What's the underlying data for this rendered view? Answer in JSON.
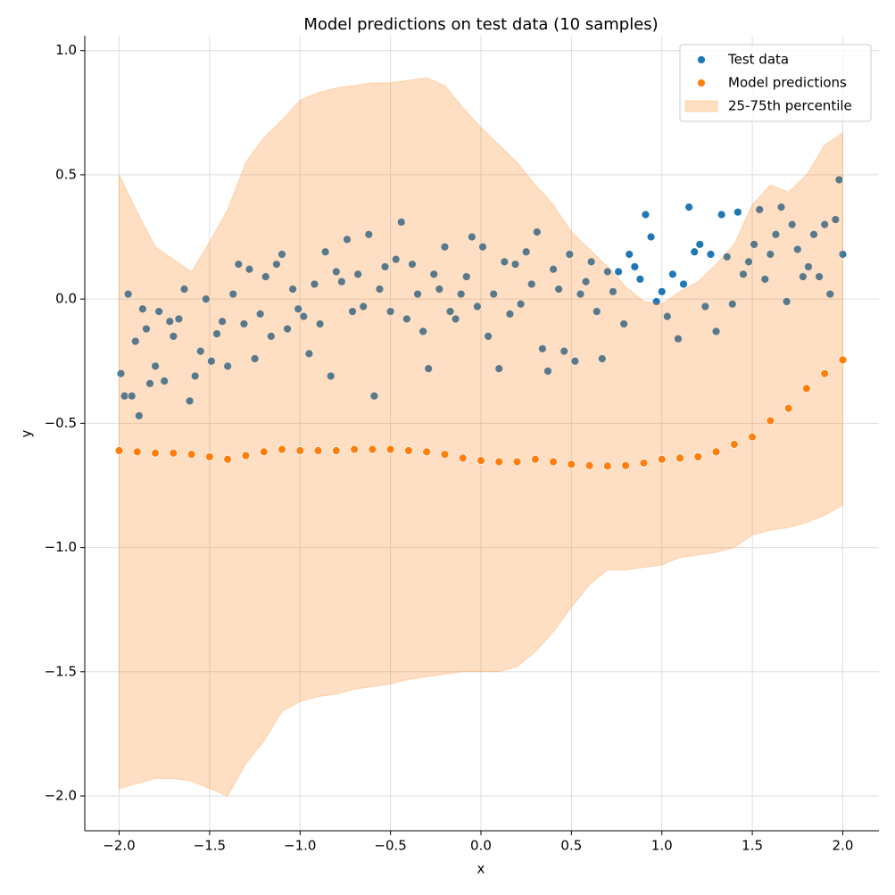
{
  "chart_data": {
    "type": "scatter",
    "title": "Model predictions on test data (10 samples)",
    "x_label": "x",
    "y_label": "y",
    "xlim": [
      -2.19,
      2.2
    ],
    "ylim": [
      -2.14,
      1.06
    ],
    "xticks": [
      {
        "value": -2.0,
        "label": "−2.0"
      },
      {
        "value": -1.5,
        "label": "−1.5"
      },
      {
        "value": -1.0,
        "label": "−1.0"
      },
      {
        "value": -0.5,
        "label": "−0.5"
      },
      {
        "value": 0.0,
        "label": "0.0"
      },
      0.5,
      {
        "value": 1.0,
        "label": "1.0"
      },
      1.5,
      {
        "value": 2.0,
        "label": "2.0"
      }
    ],
    "yticks": [
      {
        "value": -2.0,
        "label": "−2.0"
      },
      {
        "value": -1.5,
        "label": "−1.5"
      },
      {
        "value": -1.0,
        "label": "−1.0"
      },
      {
        "value": -0.5,
        "label": "−0.5"
      },
      {
        "value": 0.0,
        "label": "0.0"
      },
      0.5,
      {
        "value": 1.0,
        "label": "1.0"
      }
    ],
    "grid": true,
    "legend": "upper right",
    "series": [
      {
        "name": "Test data",
        "color": "#1f77b4",
        "x": [
          -1.99,
          -1.97,
          -1.95,
          -1.93,
          -1.91,
          -1.89,
          -1.87,
          -1.85,
          -1.83,
          -1.8,
          -1.78,
          -1.75,
          -1.72,
          -1.7,
          -1.67,
          -1.64,
          -1.61,
          -1.58,
          -1.55,
          -1.52,
          -1.49,
          -1.46,
          -1.43,
          -1.4,
          -1.37,
          -1.34,
          -1.31,
          -1.28,
          -1.25,
          -1.22,
          -1.19,
          -1.16,
          -1.13,
          -1.1,
          -1.07,
          -1.04,
          -1.01,
          -0.98,
          -0.95,
          -0.92,
          -0.89,
          -0.86,
          -0.83,
          -0.8,
          -0.77,
          -0.74,
          -0.71,
          -0.68,
          -0.65,
          -0.62,
          -0.59,
          -0.56,
          -0.53,
          -0.5,
          -0.47,
          -0.44,
          -0.41,
          -0.38,
          -0.35,
          -0.32,
          -0.29,
          -0.26,
          -0.23,
          -0.2,
          -0.17,
          -0.14,
          -0.11,
          -0.08,
          -0.05,
          -0.02,
          0.01,
          0.04,
          0.07,
          0.1,
          0.13,
          0.16,
          0.19,
          0.22,
          0.25,
          0.28,
          0.31,
          0.34,
          0.37,
          0.4,
          0.43,
          0.46,
          0.49,
          0.52,
          0.55,
          0.58,
          0.61,
          0.64,
          0.67,
          0.7,
          0.73,
          0.76,
          0.79,
          0.82,
          0.85,
          0.88,
          0.91,
          0.94,
          0.97,
          1.0,
          1.03,
          1.06,
          1.09,
          1.12,
          1.15,
          1.18,
          1.21,
          1.24,
          1.27,
          1.3,
          1.33,
          1.36,
          1.39,
          1.42,
          1.45,
          1.48,
          1.51,
          1.54,
          1.57,
          1.6,
          1.63,
          1.66,
          1.69,
          1.72,
          1.75,
          1.78,
          1.81,
          1.84,
          1.87,
          1.9,
          1.93,
          1.96,
          1.98,
          2.0
        ],
        "values": [
          -0.3,
          -0.39,
          0.02,
          -0.39,
          -0.17,
          -0.47,
          -0.04,
          -0.12,
          -0.34,
          -0.27,
          -0.05,
          -0.33,
          -0.09,
          -0.15,
          -0.08,
          0.04,
          -0.41,
          -0.31,
          -0.21,
          0.0,
          -0.25,
          -0.14,
          -0.09,
          -0.27,
          0.02,
          0.14,
          -0.1,
          0.12,
          -0.24,
          -0.06,
          0.09,
          -0.15,
          0.14,
          0.18,
          -0.12,
          0.04,
          -0.04,
          -0.07,
          -0.22,
          0.06,
          -0.1,
          0.19,
          -0.31,
          0.11,
          0.07,
          0.24,
          -0.05,
          0.1,
          -0.03,
          0.26,
          -0.39,
          0.04,
          0.13,
          -0.05,
          0.16,
          0.31,
          -0.08,
          0.14,
          0.02,
          -0.13,
          -0.28,
          0.1,
          0.04,
          0.21,
          -0.05,
          -0.08,
          0.02,
          0.09,
          0.25,
          -0.03,
          0.21,
          -0.15,
          0.02,
          -0.28,
          0.15,
          -0.06,
          0.14,
          -0.02,
          0.19,
          0.06,
          0.27,
          -0.2,
          -0.29,
          0.12,
          0.04,
          -0.21,
          0.18,
          -0.25,
          0.02,
          0.07,
          0.15,
          -0.05,
          -0.24,
          0.11,
          0.03,
          0.11,
          -0.1,
          0.18,
          0.13,
          0.08,
          0.34,
          0.25,
          -0.01,
          0.03,
          -0.07,
          0.1,
          -0.16,
          0.06,
          0.37,
          0.19,
          0.22,
          -0.03,
          0.18,
          -0.13,
          0.34,
          0.17,
          -0.02,
          0.35,
          0.1,
          0.15,
          0.22,
          0.36,
          0.08,
          0.18,
          0.26,
          0.37,
          -0.01,
          0.3,
          0.2,
          0.09,
          0.13,
          0.26,
          0.09,
          0.3,
          0.02,
          0.32,
          0.48,
          0.18
        ]
      },
      {
        "name": "Model predictions",
        "color": "#ff7f0e",
        "x": [
          -2.0,
          -1.9,
          -1.8,
          -1.7,
          -1.6,
          -1.5,
          -1.4,
          -1.3,
          -1.2,
          -1.1,
          -1.0,
          -0.9,
          -0.8,
          -0.7,
          -0.6,
          -0.5,
          -0.4,
          -0.3,
          -0.2,
          -0.1,
          0.0,
          0.1,
          0.2,
          0.3,
          0.4,
          0.5,
          0.6,
          0.7,
          0.8,
          0.9,
          1.0,
          1.1,
          1.2,
          1.3,
          1.4,
          1.5,
          1.6,
          1.7,
          1.8,
          1.9,
          2.0
        ],
        "values": [
          -0.61,
          -0.615,
          -0.62,
          -0.62,
          -0.625,
          -0.635,
          -0.645,
          -0.63,
          -0.615,
          -0.605,
          -0.61,
          -0.61,
          -0.61,
          -0.605,
          -0.605,
          -0.605,
          -0.61,
          -0.615,
          -0.625,
          -0.64,
          -0.65,
          -0.655,
          -0.655,
          -0.645,
          -0.655,
          -0.665,
          -0.67,
          -0.672,
          -0.67,
          -0.66,
          -0.645,
          -0.64,
          -0.635,
          -0.615,
          -0.585,
          -0.555,
          -0.49,
          -0.44,
          -0.36,
          -0.3,
          -0.245
        ]
      }
    ],
    "band": {
      "name": "25-75th percentile",
      "color": "#ff7f0e",
      "opacity": 0.25,
      "x": [
        -2.0,
        -1.9,
        -1.8,
        -1.7,
        -1.6,
        -1.5,
        -1.4,
        -1.3,
        -1.2,
        -1.1,
        -1.0,
        -0.9,
        -0.8,
        -0.7,
        -0.6,
        -0.5,
        -0.4,
        -0.3,
        -0.2,
        -0.1,
        0.0,
        0.1,
        0.2,
        0.3,
        0.4,
        0.5,
        0.6,
        0.7,
        0.8,
        0.9,
        1.0,
        1.1,
        1.2,
        1.3,
        1.4,
        1.5,
        1.6,
        1.7,
        1.8,
        1.9,
        2.0
      ],
      "upper": [
        0.5,
        0.35,
        0.21,
        0.16,
        0.11,
        0.23,
        0.36,
        0.55,
        0.65,
        0.72,
        0.8,
        0.83,
        0.85,
        0.86,
        0.87,
        0.87,
        0.88,
        0.89,
        0.86,
        0.77,
        0.69,
        0.62,
        0.55,
        0.46,
        0.38,
        0.27,
        0.2,
        0.13,
        0.05,
        -0.01,
        -0.02,
        0.03,
        0.07,
        0.14,
        0.22,
        0.38,
        0.46,
        0.43,
        0.5,
        0.62,
        0.67
      ],
      "lower": [
        -1.97,
        -1.95,
        -1.93,
        -1.93,
        -1.94,
        -1.97,
        -2.0,
        -1.87,
        -1.78,
        -1.66,
        -1.62,
        -1.6,
        -1.59,
        -1.57,
        -1.56,
        -1.55,
        -1.53,
        -1.52,
        -1.51,
        -1.5,
        -1.5,
        -1.5,
        -1.48,
        -1.42,
        -1.34,
        -1.24,
        -1.15,
        -1.09,
        -1.09,
        -1.08,
        -1.07,
        -1.04,
        -1.03,
        -1.02,
        -1.0,
        -0.95,
        -0.93,
        -0.92,
        -0.9,
        -0.87,
        -0.83
      ]
    }
  }
}
